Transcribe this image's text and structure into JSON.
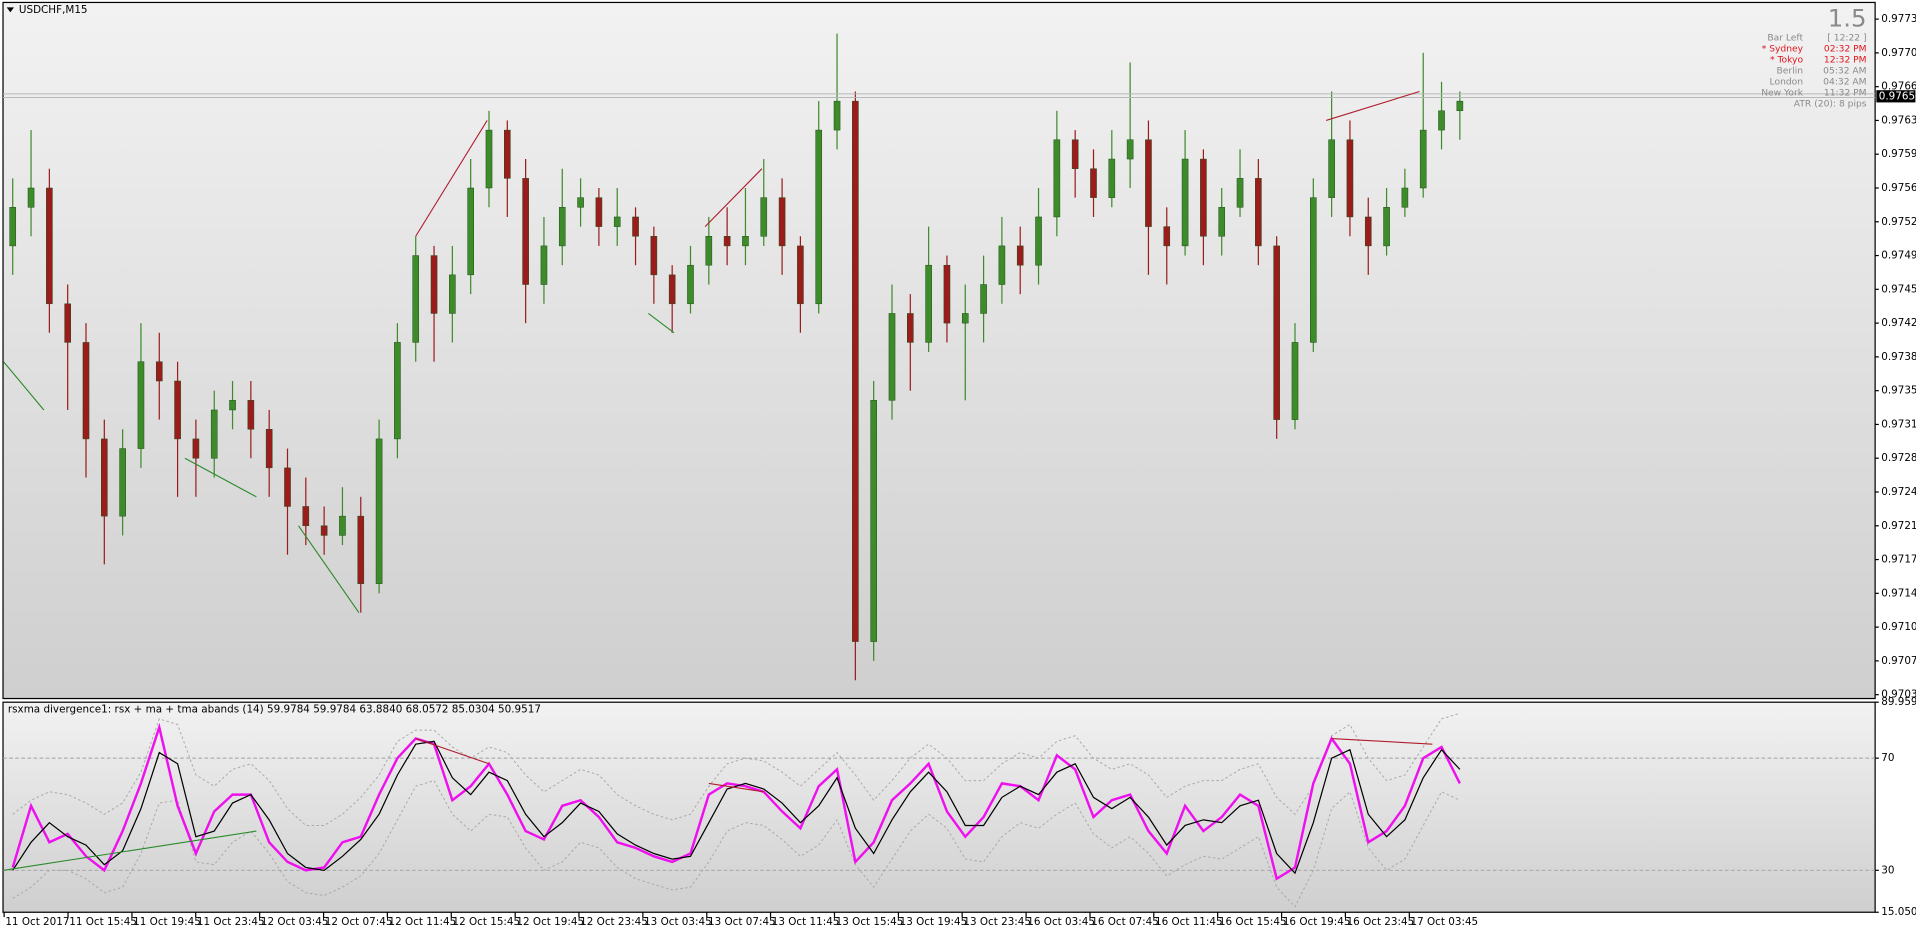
{
  "chart_data": [
    {
      "type": "candlestick",
      "title": "USDCHF,M15",
      "ylim": [
        0.97031,
        0.97751
      ],
      "yticks": [
        0.97035,
        {
          "value": 0.9707,
          "label": "0.97070"
        },
        0.97105,
        {
          "value": 0.9714,
          "label": "0.97140"
        },
        0.97175,
        {
          "value": 0.9721,
          "label": "0.97210"
        },
        0.97245,
        {
          "value": 0.9728,
          "label": "0.97280"
        },
        0.97315,
        {
          "value": 0.9735,
          "label": "0.97350"
        },
        0.97385,
        {
          "value": 0.9742,
          "label": "0.97420"
        },
        0.97455,
        {
          "value": 0.9749,
          "label": "0.97490"
        },
        0.97525,
        {
          "value": 0.9756,
          "label": "0.97560"
        },
        0.97595,
        {
          "value": 0.9763,
          "label": "0.97630"
        },
        0.97665,
        {
          "value": 0.977,
          "label": "0.97700"
        },
        0.97735
      ],
      "up_color": "#3d8b2a",
      "down_color": "#9b1c1c",
      "open": [
        0.975,
        0.9754,
        0.9756,
        0.9744,
        0.974,
        0.973,
        0.9722,
        0.9729,
        0.9738,
        0.9736,
        0.973,
        0.9728,
        0.9733,
        0.9734,
        0.9731,
        0.9727,
        0.9723,
        0.9721,
        0.972,
        0.9722,
        0.9715,
        0.973,
        0.974,
        0.9749,
        0.9743,
        0.9747,
        0.9756,
        0.9762,
        0.9757,
        0.9746,
        0.975,
        0.9754,
        0.9755,
        0.9752,
        0.9753,
        0.9751,
        0.9747,
        0.9744,
        0.9748,
        0.9751,
        0.975,
        0.9751,
        0.9755,
        0.975,
        0.9744,
        0.9762,
        0.9765,
        0.9709,
        0.9734,
        0.9743,
        0.974,
        0.9748,
        0.9742,
        0.9743,
        0.9746,
        0.975,
        0.9748,
        0.9753,
        0.9761,
        0.9758,
        0.9755,
        0.9759,
        0.9761,
        0.9752,
        0.975,
        0.9759,
        0.9751,
        0.9754,
        0.9757,
        0.975,
        0.9732,
        0.974,
        0.9755,
        0.9761,
        0.9753,
        0.975,
        0.9754,
        0.9756,
        0.9762,
        0.9764
      ],
      "high": [
        0.9757,
        0.9762,
        0.9758,
        0.9746,
        0.9742,
        0.9732,
        0.9731,
        0.9742,
        0.9741,
        0.9738,
        0.9732,
        0.9735,
        0.9736,
        0.9736,
        0.9733,
        0.9729,
        0.9726,
        0.9723,
        0.9725,
        0.9724,
        0.9732,
        0.9742,
        0.9751,
        0.975,
        0.975,
        0.9759,
        0.9764,
        0.9763,
        0.9759,
        0.9753,
        0.9758,
        0.9757,
        0.9756,
        0.9756,
        0.9754,
        0.9752,
        0.9748,
        0.975,
        0.9753,
        0.9754,
        0.9756,
        0.9759,
        0.9757,
        0.9751,
        0.9765,
        0.9772,
        0.9766,
        0.9736,
        0.9746,
        0.9745,
        0.9752,
        0.9749,
        0.9746,
        0.9749,
        0.9753,
        0.9752,
        0.9756,
        0.9764,
        0.9762,
        0.976,
        0.9762,
        0.9769,
        0.9763,
        0.9754,
        0.9762,
        0.976,
        0.9756,
        0.976,
        0.9759,
        0.9751,
        0.9742,
        0.9757,
        0.9766,
        0.9763,
        0.9755,
        0.9756,
        0.9758,
        0.977,
        0.9767,
        0.9766
      ],
      "low": [
        0.9747,
        0.9751,
        0.9741,
        0.9733,
        0.9726,
        0.9717,
        0.972,
        0.9727,
        0.9732,
        0.9724,
        0.9724,
        0.9726,
        0.9731,
        0.9728,
        0.9724,
        0.9718,
        0.9719,
        0.9718,
        0.9719,
        0.9712,
        0.9714,
        0.9728,
        0.9738,
        0.9738,
        0.974,
        0.9745,
        0.9754,
        0.9753,
        0.9742,
        0.9744,
        0.9748,
        0.9752,
        0.975,
        0.975,
        0.9748,
        0.9744,
        0.9741,
        0.9743,
        0.9746,
        0.9748,
        0.9748,
        0.975,
        0.9747,
        0.9741,
        0.9743,
        0.976,
        0.9705,
        0.9707,
        0.9732,
        0.9735,
        0.9739,
        0.974,
        0.9734,
        0.974,
        0.9744,
        0.9745,
        0.9746,
        0.9751,
        0.9755,
        0.9753,
        0.9754,
        0.9756,
        0.9747,
        0.9746,
        0.9749,
        0.9748,
        0.9749,
        0.9753,
        0.9748,
        0.973,
        0.9731,
        0.9739,
        0.9753,
        0.9751,
        0.9747,
        0.9749,
        0.9753,
        0.9755,
        0.976,
        0.9761
      ],
      "close": [
        0.9754,
        0.9756,
        0.9744,
        0.974,
        0.973,
        0.9722,
        0.9729,
        0.9738,
        0.9736,
        0.973,
        0.9728,
        0.9733,
        0.9734,
        0.9731,
        0.9727,
        0.9723,
        0.9721,
        0.972,
        0.9722,
        0.9715,
        0.973,
        0.974,
        0.9749,
        0.9743,
        0.9747,
        0.9756,
        0.9762,
        0.9757,
        0.9746,
        0.975,
        0.9754,
        0.9755,
        0.9752,
        0.9753,
        0.9751,
        0.9747,
        0.9744,
        0.9748,
        0.9751,
        0.975,
        0.9751,
        0.9755,
        0.975,
        0.9744,
        0.9762,
        0.9765,
        0.9709,
        0.9734,
        0.9743,
        0.974,
        0.9748,
        0.9742,
        0.9743,
        0.9746,
        0.975,
        0.9748,
        0.9753,
        0.9761,
        0.9758,
        0.9755,
        0.9759,
        0.9761,
        0.9752,
        0.975,
        0.9759,
        0.9751,
        0.9754,
        0.9757,
        0.975,
        0.9732,
        0.974,
        0.9755,
        0.9761,
        0.9753,
        0.975,
        0.9754,
        0.9756,
        0.9762,
        0.9764,
        0.9765
      ],
      "last_price": 0.97655,
      "divergences": [
        {
          "from": [
            -0.5,
            0.9738
          ],
          "to": [
            1.7,
            0.9733
          ],
          "color": "#2a8a2a"
        },
        {
          "from": [
            9.4,
            0.9728
          ],
          "to": [
            13.3,
            0.9724
          ],
          "color": "#2a8a2a"
        },
        {
          "from": [
            15.6,
            0.9721
          ],
          "to": [
            18.9,
            0.9712
          ],
          "color": "#2a8a2a"
        },
        {
          "from": [
            22,
            0.9751
          ],
          "to": [
            25.9,
            0.9763
          ],
          "color": "#b01c2c"
        },
        {
          "from": [
            34.7,
            0.9743
          ],
          "to": [
            36.1,
            0.9741
          ],
          "color": "#2a8a2a"
        },
        {
          "from": [
            37.8,
            0.9752
          ],
          "to": [
            40.9,
            0.9758
          ],
          "color": "#b01c2c"
        },
        {
          "from": [
            71.7,
            0.9763
          ],
          "to": [
            76.8,
            0.9766
          ],
          "color": "#b01c2c"
        }
      ],
      "info_panel": {
        "big": "1.5",
        "rows": [
          {
            "label": "Bar Left",
            "value": "[ 12:22 ]",
            "color": "#8a8a8a"
          },
          {
            "label": "* Sydney",
            "value": "02:32 PM",
            "color": "#e0141e"
          },
          {
            "label": "* Tokyo",
            "value": "12:32 PM",
            "color": "#e0141e"
          },
          {
            "label": "Berlin",
            "value": "05:32 AM",
            "color": "#8a8a8a"
          },
          {
            "label": "London",
            "value": "04:32 AM",
            "color": "#8a8a8a"
          },
          {
            "label": "New York",
            "value": "11:32 PM",
            "color": "#8a8a8a"
          }
        ],
        "atr": "ATR (20): 8 pips"
      }
    },
    {
      "type": "line",
      "title": "rsxma divergence1: rsx + ma + tma abands (14) 59.9784 59.9784 63.8840 68.0572 85.0304 50.9517",
      "ylim": [
        15.0506,
        89.9595
      ],
      "yticks": [
        89.9595,
        70,
        30,
        15.0506
      ],
      "xlim": [
        -0.53,
        101.67
      ],
      "xticks": [
        {
          "value": -0.47,
          "label": "11 Oct 2017"
        },
        {
          "value": 3.02,
          "label": "11 Oct 15:45"
        },
        {
          "value": 6.51,
          "label": "11 Oct 19:45"
        },
        {
          "value": 9.99,
          "label": "11 Oct 23:45"
        },
        {
          "value": 13.48,
          "label": "12 Oct 03:45"
        },
        {
          "value": 16.97,
          "label": "12 Oct 07:45"
        },
        {
          "value": 20.45,
          "label": "12 Oct 11:45"
        },
        {
          "value": 23.94,
          "label": "12 Oct 15:45"
        },
        {
          "value": 27.43,
          "label": "12 Oct 19:45"
        },
        {
          "value": 30.91,
          "label": "12 Oct 23:45"
        },
        {
          "value": 34.4,
          "label": "13 Oct 03:45"
        },
        {
          "value": 37.89,
          "label": "13 Oct 07:45"
        },
        {
          "value": 41.37,
          "label": "13 Oct 11:45"
        },
        {
          "value": 44.86,
          "label": "13 Oct 15:45"
        },
        {
          "value": 48.35,
          "label": "13 Oct 19:45"
        },
        {
          "value": 51.83,
          "label": "13 Oct 23:45"
        },
        {
          "value": 55.32,
          "label": "16 Oct 03:45"
        },
        {
          "value": 58.81,
          "label": "16 Oct 07:45"
        },
        {
          "value": 62.29,
          "label": "16 Oct 11:45"
        },
        {
          "value": 65.78,
          "label": "16 Oct 15:45"
        },
        {
          "value": 69.27,
          "label": "16 Oct 19:45"
        },
        {
          "value": 72.75,
          "label": "16 Oct 23:45"
        },
        {
          "value": 76.24,
          "label": "17 Oct 03:45"
        }
      ],
      "series": [
        {
          "color": "#a8a8a8",
          "dashed": true,
          "width": 0.8,
          "values": [
            50,
            55,
            58,
            57,
            54,
            50,
            54,
            65,
            84,
            82,
            64,
            60,
            66,
            68,
            62,
            52,
            46,
            46,
            50,
            56,
            64,
            76,
            80,
            80,
            74,
            70,
            74,
            72,
            64,
            58,
            62,
            66,
            64,
            57,
            53,
            50,
            48,
            50,
            60,
            68,
            70,
            69,
            65,
            60,
            66,
            72,
            64,
            55,
            62,
            70,
            75,
            70,
            62,
            62,
            68,
            72,
            70,
            76,
            78,
            70,
            66,
            68,
            64,
            56,
            60,
            62,
            62,
            66,
            68,
            56,
            50,
            60,
            78,
            82,
            70,
            62,
            64,
            74,
            84,
            86
          ]
        },
        {
          "color": "#a8a8a8",
          "dashed": true,
          "width": 0.8,
          "values": [
            20,
            24,
            30,
            30,
            27,
            22,
            24,
            36,
            54,
            55,
            33,
            32,
            40,
            44,
            36,
            26,
            22,
            21,
            24,
            28,
            36,
            48,
            60,
            62,
            50,
            44,
            50,
            49,
            38,
            30,
            33,
            40,
            38,
            31,
            27,
            25,
            23,
            24,
            33,
            44,
            47,
            46,
            41,
            35,
            39,
            48,
            32,
            24,
            34,
            44,
            50,
            45,
            34,
            33,
            42,
            47,
            45,
            50,
            54,
            43,
            38,
            42,
            36,
            28,
            32,
            35,
            34,
            38,
            42,
            24,
            17,
            30,
            52,
            58,
            38,
            30,
            34,
            46,
            58,
            55
          ]
        },
        {
          "color": "#ee10ee",
          "width": 2,
          "values": [
            31,
            53,
            40,
            43,
            35,
            30,
            44,
            61,
            81,
            53,
            36,
            51,
            57,
            57,
            40,
            33,
            30,
            31,
            40,
            42,
            57,
            70,
            77,
            75,
            55,
            60,
            68,
            57,
            44,
            41,
            53,
            55,
            49,
            40,
            38,
            35,
            33,
            36,
            57,
            61,
            60,
            58,
            51,
            45,
            60,
            66,
            33,
            40,
            55,
            61,
            68,
            51,
            42,
            49,
            61,
            60,
            55,
            71,
            66,
            49,
            55,
            57,
            44,
            36,
            53,
            44,
            49,
            57,
            53,
            27,
            31,
            61,
            77,
            68,
            40,
            44,
            53,
            70,
            74,
            61
          ]
        },
        {
          "color": "#000000",
          "width": 1,
          "values": [
            30,
            40,
            47,
            42,
            39,
            32,
            37,
            52,
            72,
            68,
            42,
            44,
            54,
            57,
            48,
            36,
            31,
            30,
            35,
            41,
            50,
            64,
            75,
            76,
            63,
            57,
            65,
            62,
            50,
            42,
            47,
            54,
            51,
            43,
            39,
            36,
            34,
            35,
            47,
            59,
            61,
            59,
            54,
            47,
            53,
            63,
            45,
            36,
            48,
            58,
            65,
            58,
            46,
            46,
            56,
            60,
            57,
            65,
            68,
            56,
            52,
            56,
            49,
            39,
            46,
            48,
            47,
            53,
            55,
            36,
            29,
            47,
            70,
            73,
            50,
            42,
            48,
            63,
            73,
            66
          ]
        }
      ],
      "divergences": [
        {
          "from": [
            -0.5,
            30
          ],
          "to": [
            13.3,
            44
          ],
          "color": "#2a8a2a"
        },
        {
          "from": [
            22,
            77
          ],
          "to": [
            26,
            68
          ],
          "color": "#b01c2c"
        },
        {
          "from": [
            38,
            61
          ],
          "to": [
            41,
            58
          ],
          "color": "#b01c2c"
        },
        {
          "from": [
            72,
            77
          ],
          "to": [
            77.5,
            75
          ],
          "color": "#b01c2c"
        }
      ]
    }
  ]
}
